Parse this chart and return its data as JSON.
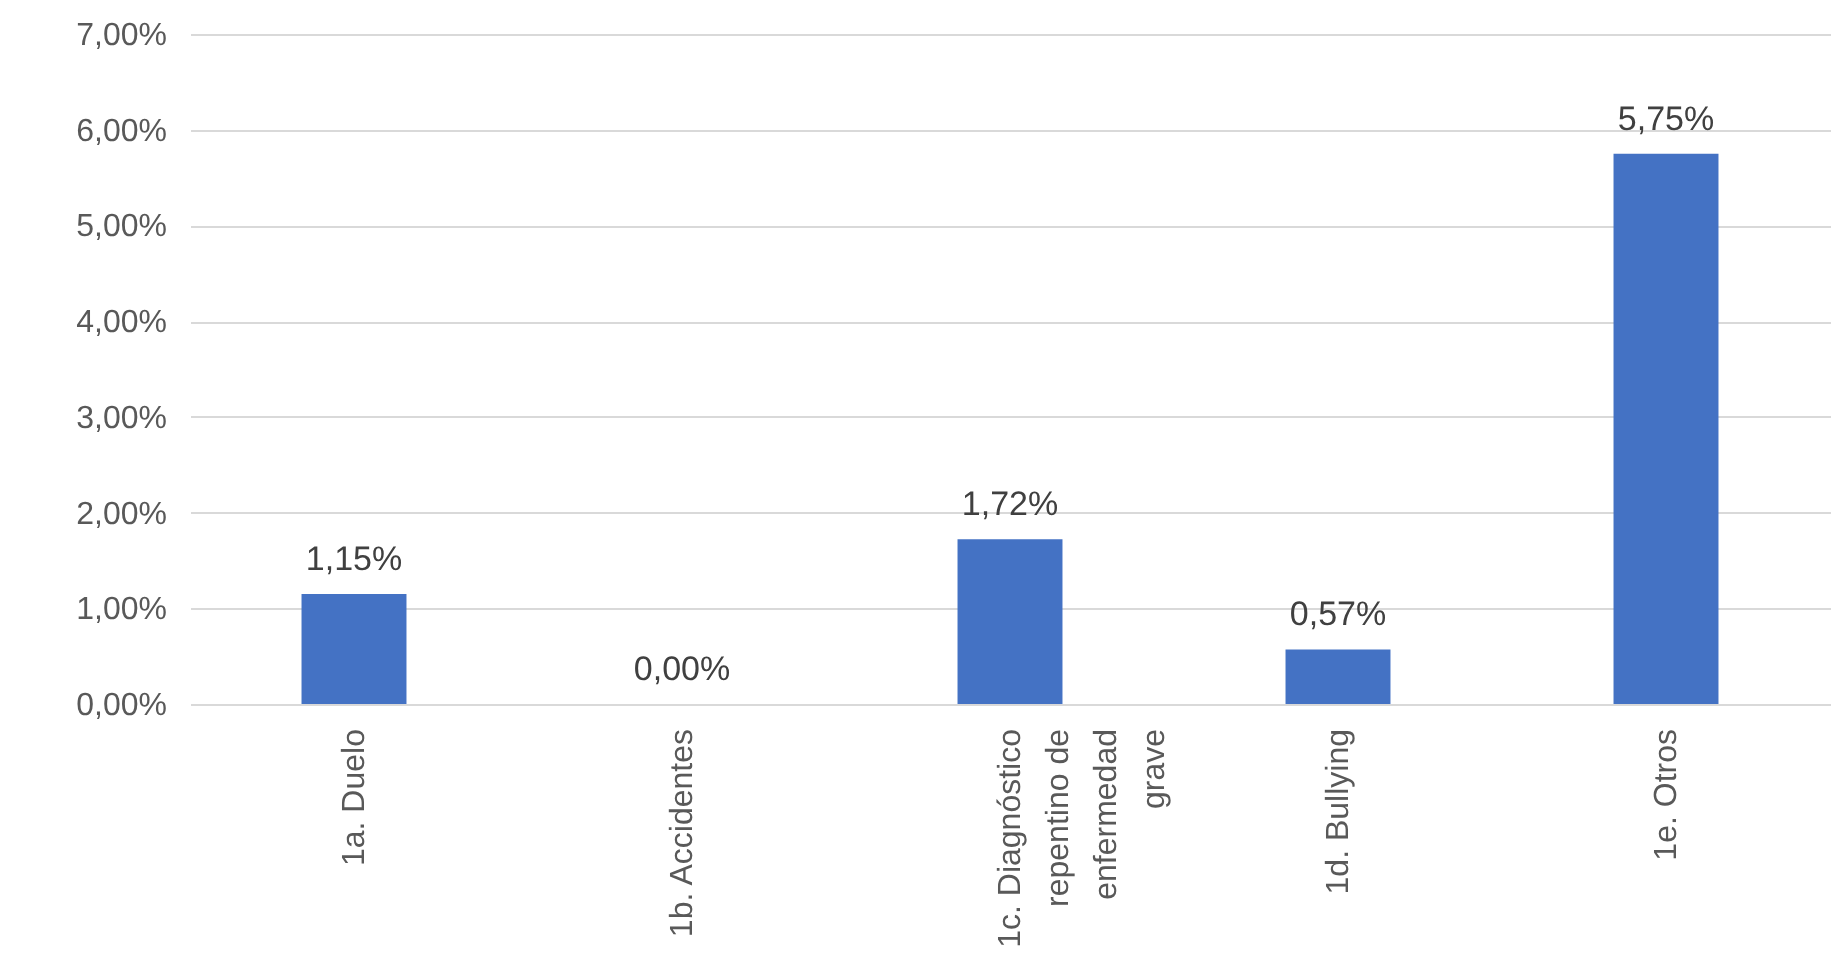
{
  "chart_data": {
    "type": "bar",
    "categories": [
      "1a. Duelo",
      "1b. Accidentes",
      "1c. Diagnóstico repentino de enfermedad grave",
      "1d. Bullying",
      "1e. Otros"
    ],
    "values": [
      1.15,
      0,
      1.72,
      0.57,
      5.75
    ],
    "value_labels": [
      "1,15%",
      "0,00%",
      "1,72%",
      "0,57%",
      "5,75%"
    ],
    "color": "#4472c4",
    "ylim": [
      0,
      7
    ],
    "yticks": [
      {
        "value": 0,
        "label": "0,00%"
      },
      {
        "value": 1,
        "label": "1,00%"
      },
      {
        "value": 2,
        "label": "2,00%"
      },
      {
        "value": 3,
        "label": "3,00%"
      },
      {
        "value": 4,
        "label": "4,00%"
      },
      {
        "value": 5,
        "label": "5,00%"
      },
      {
        "value": 6,
        "label": "6,00%"
      },
      {
        "value": 7,
        "label": "7,00%"
      }
    ],
    "grid": "y"
  }
}
